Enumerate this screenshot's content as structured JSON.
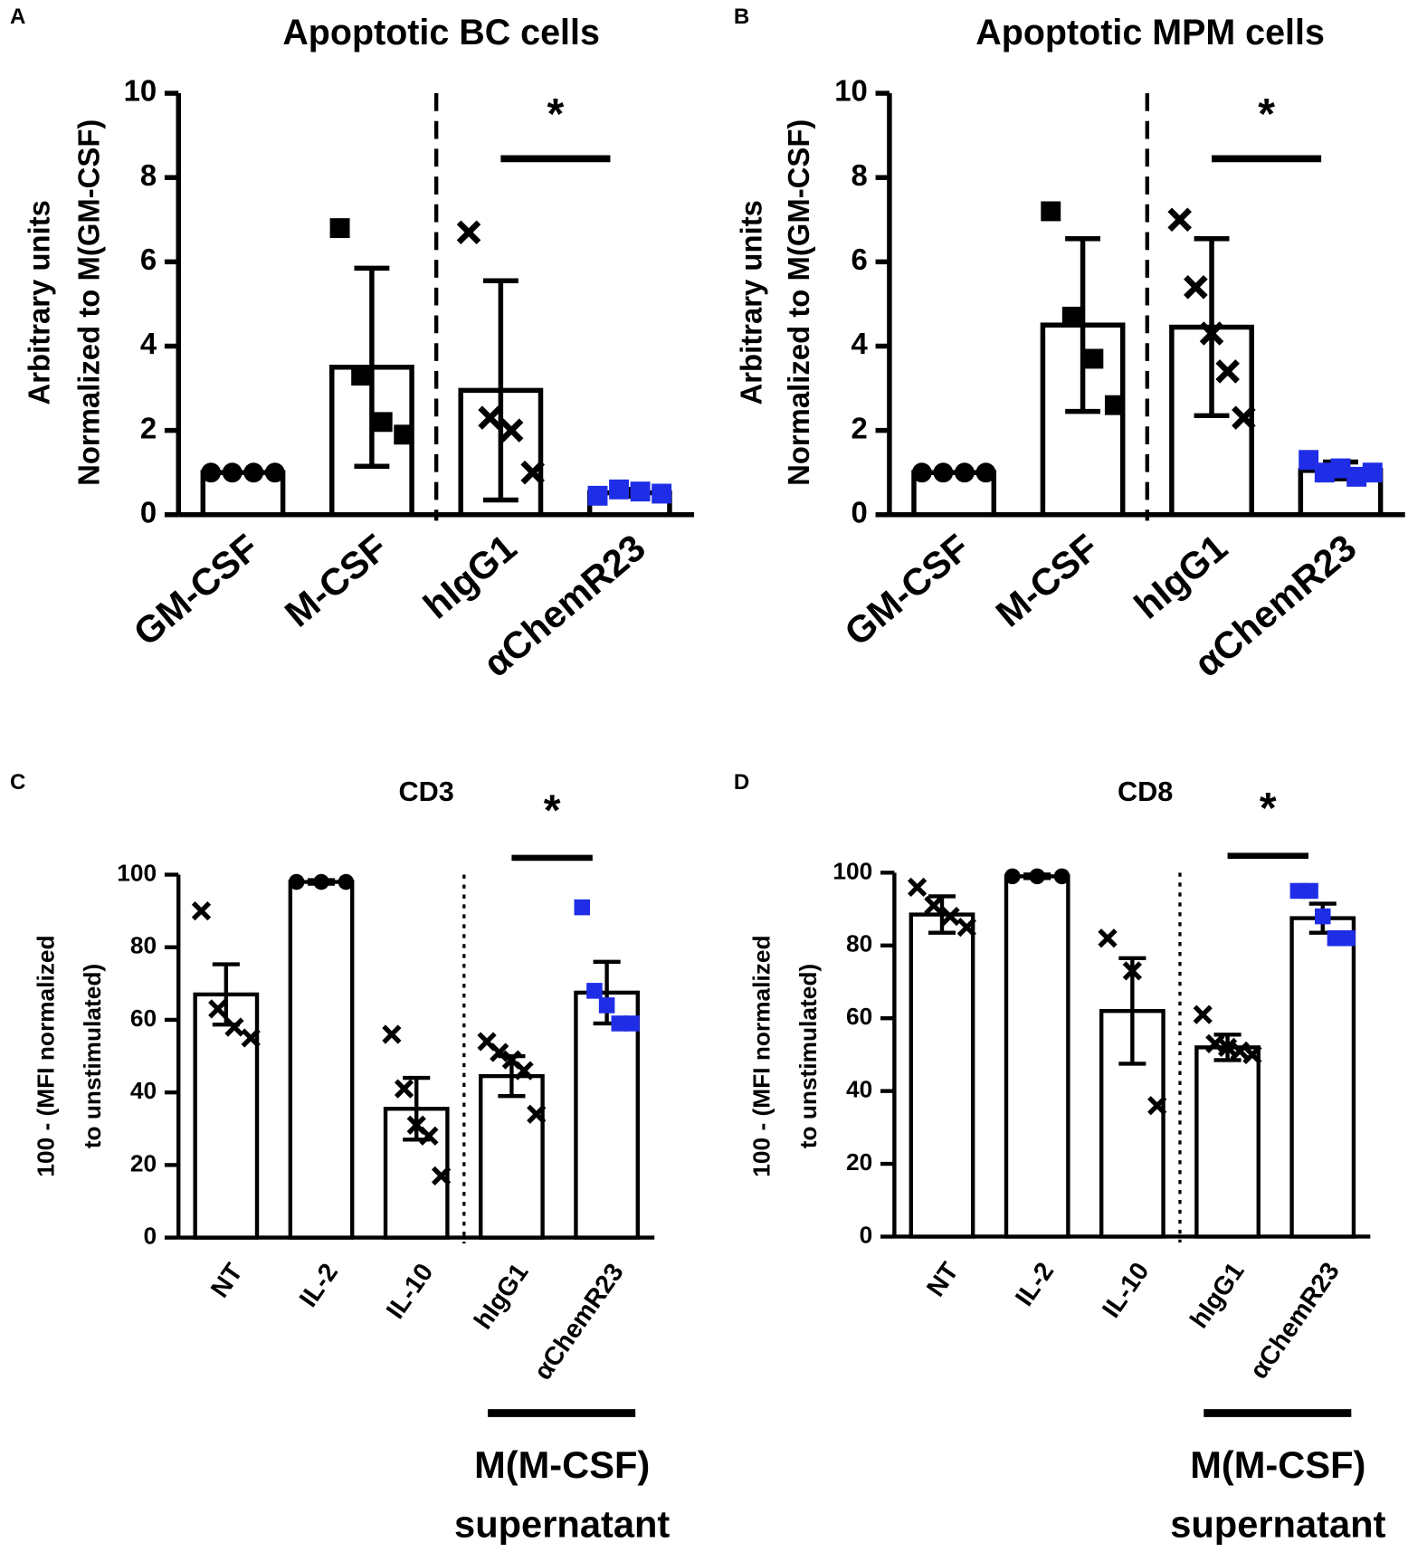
{
  "chart_data": [
    {
      "type": "bar",
      "panel": "A",
      "title": "Apoptotic BC cells",
      "ylabel": [
        "Arbitrary units",
        "Normalized to M(GM-CSF)"
      ],
      "categories": [
        "GM-CSF",
        "M-CSF",
        "hIgG1",
        "αChemR23"
      ],
      "values": [
        1.0,
        3.5,
        2.95,
        0.52
      ],
      "errors": [
        0,
        2.35,
        2.6,
        0.08
      ],
      "points": [
        [
          1,
          1,
          1,
          1
        ],
        [
          6.8,
          3.3,
          2.2,
          1.9
        ],
        [
          6.7,
          2.3,
          2.0,
          1.0
        ],
        [
          0.45,
          0.6,
          0.55,
          0.5
        ]
      ],
      "markers": [
        "circle",
        "square",
        "cross",
        "square"
      ],
      "point_colors": [
        "#000000",
        "#000000",
        "#000000",
        "#1f2ee6"
      ],
      "significance": "*",
      "ylim": [
        0,
        10
      ],
      "yticks": [
        0,
        2,
        4,
        6,
        8,
        10
      ]
    },
    {
      "type": "bar",
      "panel": "B",
      "title": "Apoptotic MPM cells",
      "ylabel": [
        "Arbitrary units",
        "Normalized to M(GM-CSF)"
      ],
      "categories": [
        "GM-CSF",
        "M-CSF",
        "hIgG1",
        "αChemR23"
      ],
      "values": [
        1.0,
        4.5,
        4.45,
        1.05
      ],
      "errors": [
        0,
        2.05,
        2.1,
        0.2
      ],
      "points": [
        [
          1,
          1,
          1,
          1
        ],
        [
          7.2,
          4.7,
          3.7,
          2.6
        ],
        [
          7.0,
          5.4,
          4.3,
          3.4,
          2.3
        ],
        [
          1.3,
          1.0,
          1.1,
          0.9,
          1.0
        ]
      ],
      "markers": [
        "circle",
        "square",
        "cross",
        "square"
      ],
      "point_colors": [
        "#000000",
        "#000000",
        "#000000",
        "#1f2ee6"
      ],
      "significance": "*",
      "ylim": [
        0,
        10
      ],
      "yticks": [
        0,
        2,
        4,
        6,
        8,
        10
      ]
    },
    {
      "type": "bar",
      "panel": "C",
      "title": "CD3",
      "ylabel": [
        "100 - (MFI normalized",
        "to unstimulated)"
      ],
      "categories": [
        "NT",
        "IL-2",
        "IL-10",
        "hIgG1",
        "αChemR23"
      ],
      "values": [
        67,
        98,
        35.5,
        44.5,
        67.5
      ],
      "errors": [
        8.3,
        0.5,
        8.5,
        5.5,
        8.5
      ],
      "points": [
        [
          90,
          63,
          58,
          55
        ],
        [
          98,
          98,
          98
        ],
        [
          56,
          41,
          31,
          28,
          17
        ],
        [
          54,
          51,
          49,
          46,
          34
        ],
        [
          91,
          68,
          64,
          59,
          59
        ]
      ],
      "markers": [
        "cross",
        "circle",
        "cross",
        "cross",
        "square"
      ],
      "point_colors": [
        "#000000",
        "#000000",
        "#000000",
        "#000000",
        "#1f2ee6"
      ],
      "significance": "*",
      "group_label": [
        "M(M-CSF)",
        "supernatant"
      ],
      "ylim": [
        0,
        100
      ],
      "yticks": [
        0,
        20,
        40,
        60,
        80,
        100
      ]
    },
    {
      "type": "bar",
      "panel": "D",
      "title": "CD8",
      "ylabel": [
        "100 - (MFI normalized",
        "to unstimulated)"
      ],
      "categories": [
        "NT",
        "IL-2",
        "IL-10",
        "hIgG1",
        "αChemR23"
      ],
      "values": [
        88.5,
        99,
        62,
        52,
        87.5
      ],
      "errors": [
        5,
        0.5,
        14.5,
        3.5,
        4
      ],
      "points": [
        [
          96,
          91,
          88,
          85
        ],
        [
          99,
          99,
          99
        ],
        [
          82,
          73,
          36
        ],
        [
          61,
          53,
          52,
          51,
          50
        ],
        [
          95,
          95,
          88,
          82,
          82
        ]
      ],
      "markers": [
        "cross",
        "circle",
        "cross",
        "cross",
        "square"
      ],
      "point_colors": [
        "#000000",
        "#000000",
        "#000000",
        "#000000",
        "#1f2ee6"
      ],
      "significance": "*",
      "group_label": [
        "M(M-CSF)",
        "supernatant"
      ],
      "ylim": [
        0,
        100
      ],
      "yticks": [
        0,
        20,
        40,
        60,
        80,
        100
      ]
    }
  ]
}
